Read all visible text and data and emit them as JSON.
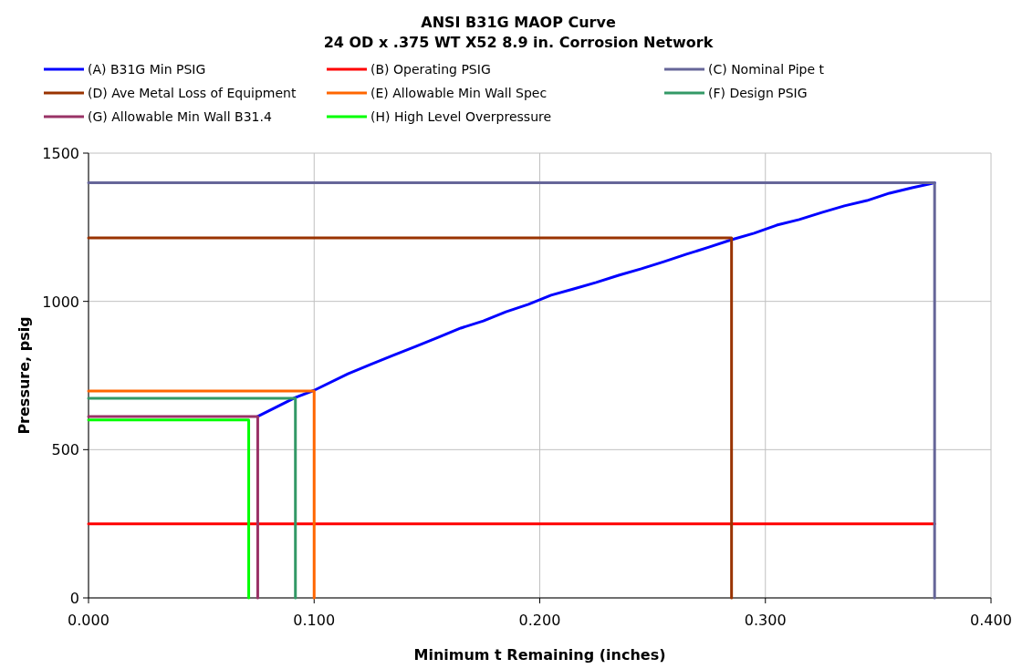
{
  "chart_data": {
    "type": "line",
    "title": "ANSI B31G MAOP Curve",
    "subtitle": "24 OD x .375 WT X52 8.9 in. Corrosion Network",
    "xlabel": "Minimum t Remaining (inches)",
    "ylabel": "Pressure, psig",
    "xlim": [
      0,
      0.4
    ],
    "xticks": [
      {
        "value": 0,
        "label": "0.000"
      },
      {
        "value": 0.1,
        "label": "0.100"
      },
      {
        "value": 0.2,
        "label": "0.200"
      },
      {
        "value": 0.3,
        "label": "0.300"
      },
      {
        "value": 0.4,
        "label": "0.400"
      }
    ],
    "ylim": [
      0,
      1500
    ],
    "yticks": [
      0,
      500,
      1000,
      1500
    ],
    "grid": true,
    "legend": "top",
    "marker": "none",
    "line_style": "solid",
    "series": [
      {
        "name": "(A) B31G Min PSIG",
        "color": "#0000ff",
        "x": [
          0.075,
          0.0917,
          0.1,
          0.115,
          0.125,
          0.135,
          0.145,
          0.155,
          0.165,
          0.175,
          0.185,
          0.195,
          0.205,
          0.215,
          0.225,
          0.235,
          0.245,
          0.255,
          0.265,
          0.275,
          0.285,
          0.295,
          0.305,
          0.315,
          0.325,
          0.335,
          0.345,
          0.355,
          0.365,
          0.375
        ],
        "values": [
          612,
          676,
          700,
          756,
          787,
          818,
          848,
          879,
          910,
          934,
          965,
          990,
          1021,
          1042,
          1064,
          1088,
          1110,
          1134,
          1159,
          1183,
          1208,
          1230,
          1257,
          1276,
          1300,
          1322,
          1340,
          1365,
          1383,
          1400
        ]
      },
      {
        "name": "(B) Operating PSIG",
        "color": "#ff0000",
        "x": [
          0,
          0.375
        ],
        "values": [
          250,
          250
        ]
      },
      {
        "name": "(C) Nominal Pipe t",
        "color": "#666699",
        "x": [
          0,
          0.375,
          0.375
        ],
        "values": [
          1400,
          1400,
          0
        ]
      },
      {
        "name": "(D) Ave Metal Loss of Equipment",
        "color": "#993300",
        "x": [
          0,
          0.285,
          0.285
        ],
        "values": [
          1214,
          1214,
          0
        ]
      },
      {
        "name": "(E) Allowable Min Wall Spec",
        "color": "#ff6600",
        "x": [
          0,
          0.1,
          0.1
        ],
        "values": [
          698,
          698,
          0
        ]
      },
      {
        "name": "(F) Design PSIG",
        "color": "#339966",
        "x": [
          0,
          0.0917,
          0.0917
        ],
        "values": [
          673,
          673,
          0
        ]
      },
      {
        "name": "(G) Allowable Min Wall B31.4",
        "color": "#993366",
        "x": [
          0,
          0.075,
          0.075
        ],
        "values": [
          612,
          612,
          0
        ]
      },
      {
        "name": "(H) High Level Overpressure",
        "color": "#00ff00",
        "x": [
          0,
          0.071,
          0.071
        ],
        "values": [
          600,
          600,
          0
        ]
      }
    ]
  }
}
